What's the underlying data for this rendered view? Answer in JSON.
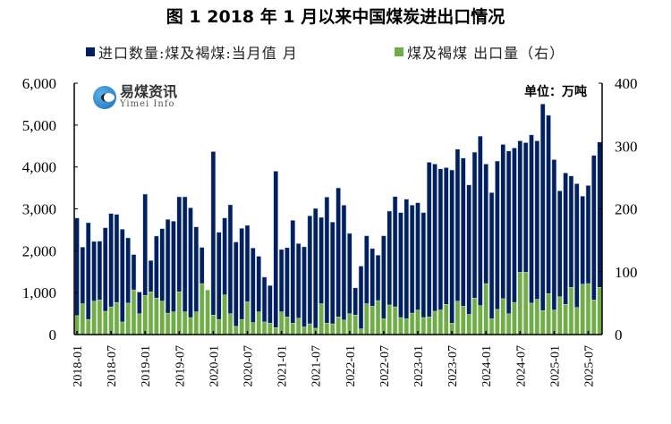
{
  "chart_data": {
    "type": "bar",
    "title": "图 1  2018 年 1 月以来中国煤炭进出口情况",
    "unit_label": "单位：万吨",
    "x_start": "2018-01",
    "x_end": "2025-09",
    "x_tick_labels": [
      "2018-01",
      "2018-07",
      "2019-01",
      "2019-07",
      "2020-01",
      "2020-07",
      "2021-01",
      "2021-07",
      "2022-01",
      "2022-07",
      "2023-01",
      "2023-07",
      "2024-01",
      "2024-07",
      "2025-01",
      "2025-07"
    ],
    "y_left": {
      "lim": [
        0,
        6000
      ],
      "ticks": [
        "0",
        "1,000",
        "2,000",
        "3,000",
        "4,000",
        "5,000",
        "6,000"
      ]
    },
    "y_right": {
      "lim": [
        0,
        400
      ],
      "ticks": [
        "0",
        "100",
        "200",
        "300",
        "400"
      ]
    },
    "grid": false,
    "legend_position": "top",
    "series": [
      {
        "name": "进口数量:煤及褐煤:当月值 月",
        "axis": "left",
        "color": "#002060",
        "values": [
          2784,
          2088,
          2670,
          2223,
          2230,
          2550,
          2890,
          2869,
          2514,
          2308,
          1910,
          1016,
          3352,
          1768,
          2351,
          2528,
          2749,
          2706,
          3288,
          3288,
          3026,
          2571,
          2081,
          null,
          4368,
          2443,
          2784,
          3097,
          2209,
          2535,
          2607,
          2067,
          1868,
          1371,
          1172,
          3899,
          2031,
          2074,
          2727,
          2173,
          2095,
          2834,
          3011,
          2798,
          3281,
          2685,
          3501,
          3089,
          2415,
          1115,
          1634,
          2358,
          2053,
          1896,
          2358,
          2947,
          3295,
          2912,
          3232,
          3089,
          3146,
          2912,
          4112,
          4070,
          3956,
          3984,
          3928,
          4425,
          4212,
          3572,
          4354,
          4737,
          4070,
          3388,
          4141,
          4538,
          4382,
          4453,
          4624,
          4581,
          4766,
          4624,
          5504,
          5234,
          4176,
          3430,
          3857,
          3786,
          3601,
          3303,
          3558,
          4276,
          4595
        ]
      },
      {
        "name": "煤及褐煤 出口量（右）",
        "axis": "right",
        "color": "#70AD47",
        "values": [
          30,
          49,
          24,
          53,
          55,
          37,
          44,
          51,
          20,
          50,
          71,
          33,
          62,
          68,
          58,
          53,
          34,
          36,
          68,
          36,
          27,
          36,
          81,
          71,
          31,
          24,
          63,
          33,
          13,
          24,
          52,
          19,
          36,
          20,
          18,
          11,
          36,
          28,
          18,
          26,
          12,
          17,
          10,
          49,
          18,
          17,
          28,
          23,
          33,
          31,
          9,
          49,
          45,
          54,
          25,
          47,
          44,
          27,
          25,
          34,
          39,
          27,
          28,
          37,
          39,
          48,
          18,
          53,
          45,
          32,
          58,
          46,
          81,
          25,
          40,
          57,
          33,
          51,
          99,
          99,
          50,
          56,
          38,
          65,
          39,
          60,
          48,
          75,
          43,
          80,
          81,
          55,
          75
        ]
      }
    ]
  },
  "logo": {
    "cn": "易煤资讯",
    "en": "Yimei Info"
  }
}
